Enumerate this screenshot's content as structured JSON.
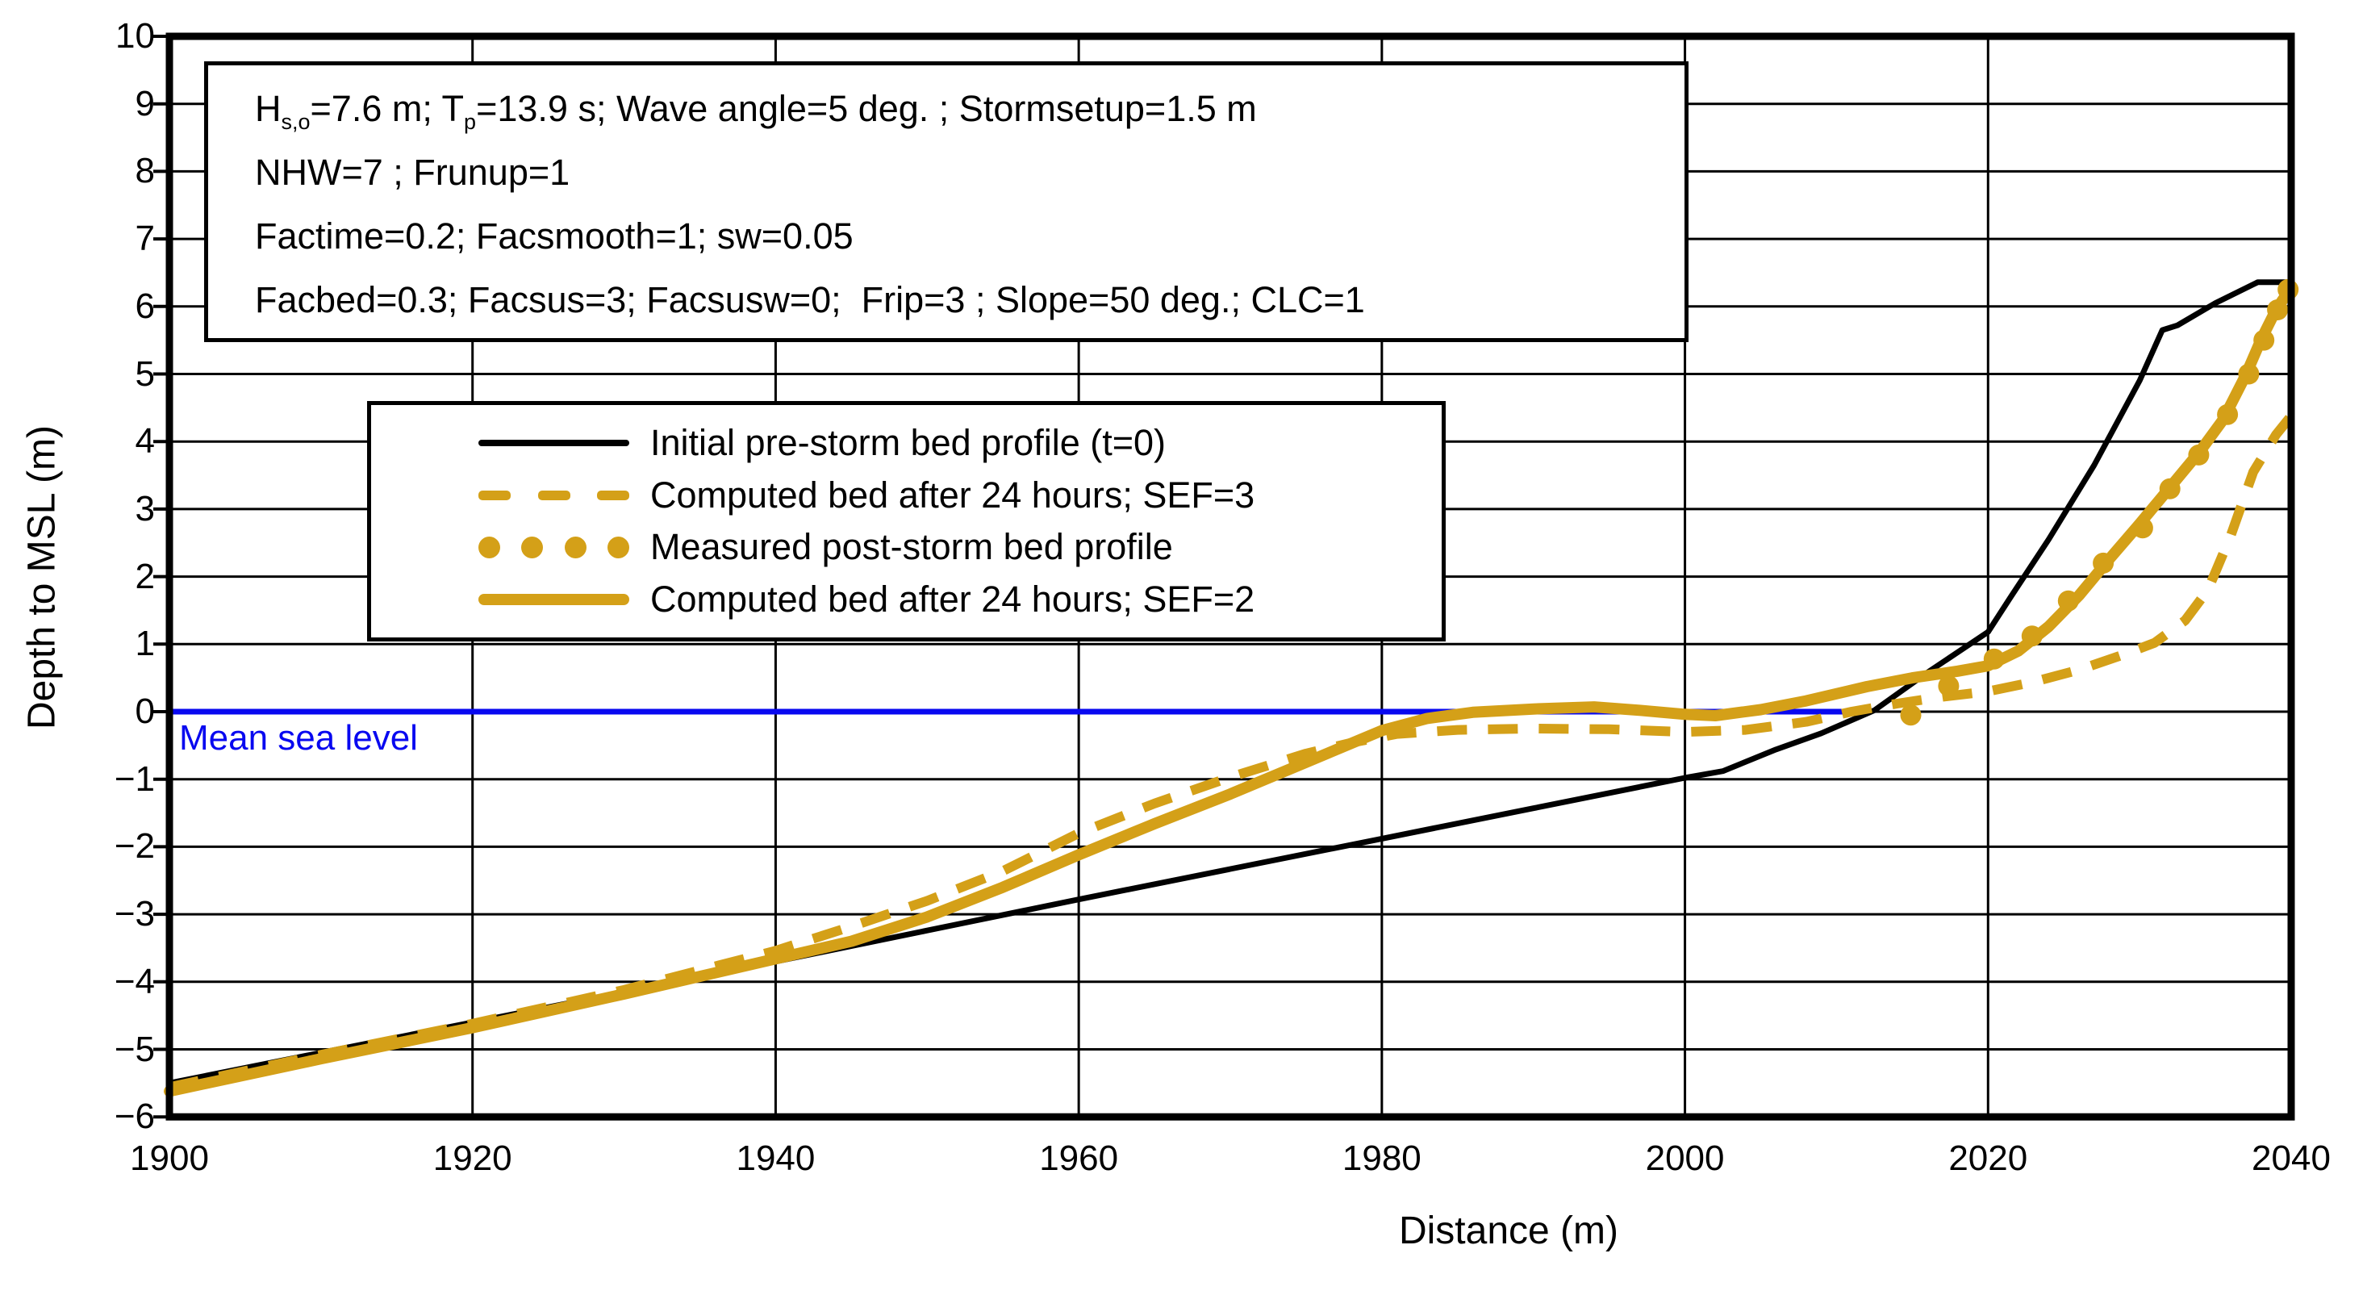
{
  "colors": {
    "background": "#FFFFFF",
    "black": "#000000",
    "gold": "#D4A018",
    "blue": "#0808F0",
    "grid": "#000000"
  },
  "annotation": {
    "lines": [
      {
        "parts": [
          {
            "t": "H"
          },
          {
            "t": "s,o",
            "sub": true
          },
          {
            "t": "=7.6 m; T"
          },
          {
            "t": "p",
            "sub": true
          },
          {
            "t": "=13.9 s; Wave angle=5 deg. ; Stormsetup=1.5 m"
          }
        ]
      },
      {
        "parts": [
          {
            "t": "NHW=7 ; Frunup=1"
          }
        ]
      },
      {
        "parts": [
          {
            "t": "Factime=0.2; Facsmooth=1; sw=0.05"
          }
        ]
      },
      {
        "parts": [
          {
            "t": "Facbed=0.3; Facsus=3; Facsusw=0;  Frip=3 ; Slope=50 deg.; CLC=1"
          }
        ]
      }
    ]
  },
  "legend": {
    "items": [
      {
        "style": "solid-black",
        "label": "Initial pre-storm bed profile (t=0)"
      },
      {
        "style": "dashed-gold",
        "label": "Computed bed after 24 hours; SEF=3"
      },
      {
        "style": "dots-gold",
        "label": "Measured post-storm bed profile"
      },
      {
        "style": "solid-gold",
        "label": "Computed bed after 24 hours; SEF=2"
      }
    ]
  },
  "chart_data": {
    "type": "line",
    "title": "",
    "xlabel": "Distance (m)",
    "ylabel": "Depth to MSL (m)",
    "xlim": [
      1900,
      2040
    ],
    "ylim": [
      -6,
      10
    ],
    "grid": true,
    "legend_position": "upper-left-inside",
    "xticks": [
      1900,
      1920,
      1940,
      1960,
      1980,
      2000,
      2020,
      2040
    ],
    "xtick_labels": [
      "1900",
      "1920",
      "1940",
      "1960",
      "1980",
      "2000",
      "2020",
      "2040"
    ],
    "yticks": [
      10,
      9,
      8,
      7,
      6,
      5,
      4,
      3,
      2,
      1,
      0,
      -1,
      -2,
      -3,
      -4,
      -5,
      -6
    ],
    "ytick_labels": [
      "10",
      "9",
      "8",
      "7",
      "6",
      "5",
      "4",
      "3",
      "2",
      "1",
      "0",
      "−1",
      "−2",
      "−3",
      "−4",
      "−5",
      "−6"
    ],
    "sea_level": {
      "value": 0,
      "label": "Mean sea level",
      "x_start": 1900,
      "x_end": 2011.5
    },
    "series": [
      {
        "name": "Initial pre-storm bed profile (t=0)",
        "style": "solid",
        "color_key": "black",
        "width": 7,
        "points": [
          [
            1900,
            -5.5
          ],
          [
            1910,
            -5.05
          ],
          [
            1920,
            -4.6
          ],
          [
            1930,
            -4.15
          ],
          [
            1940,
            -3.7
          ],
          [
            1950,
            -3.24
          ],
          [
            1960,
            -2.78
          ],
          [
            1970,
            -2.33
          ],
          [
            1980,
            -1.88
          ],
          [
            1990,
            -1.43
          ],
          [
            2000,
            -0.98
          ],
          [
            2002.5,
            -0.88
          ],
          [
            2006,
            -0.56
          ],
          [
            2009,
            -0.32
          ],
          [
            2012.5,
            0.02
          ],
          [
            2016,
            0.58
          ],
          [
            2020,
            1.18
          ],
          [
            2021.5,
            1.7
          ],
          [
            2024,
            2.55
          ],
          [
            2027,
            3.65
          ],
          [
            2030,
            4.9
          ],
          [
            2031.5,
            5.65
          ],
          [
            2032.5,
            5.72
          ],
          [
            2035,
            6.05
          ],
          [
            2037.8,
            6.36
          ],
          [
            2040,
            6.36
          ]
        ]
      },
      {
        "name": "Computed bed after 24 hours; SEF=3",
        "style": "dashed",
        "color_key": "gold",
        "width": 12,
        "points": [
          [
            1900,
            -5.56
          ],
          [
            1910,
            -5.08
          ],
          [
            1920,
            -4.62
          ],
          [
            1930,
            -4.12
          ],
          [
            1940,
            -3.54
          ],
          [
            1945,
            -3.18
          ],
          [
            1950,
            -2.8
          ],
          [
            1955,
            -2.36
          ],
          [
            1960,
            -1.8
          ],
          [
            1965,
            -1.36
          ],
          [
            1970,
            -0.97
          ],
          [
            1975,
            -0.62
          ],
          [
            1978,
            -0.46
          ],
          [
            1981,
            -0.33
          ],
          [
            1985,
            -0.27
          ],
          [
            1990,
            -0.25
          ],
          [
            1995,
            -0.26
          ],
          [
            2000,
            -0.3
          ],
          [
            2004,
            -0.27
          ],
          [
            2008,
            -0.15
          ],
          [
            2011,
            0.0
          ],
          [
            2014,
            0.12
          ],
          [
            2017,
            0.22
          ],
          [
            2020,
            0.3
          ],
          [
            2023,
            0.44
          ],
          [
            2026,
            0.62
          ],
          [
            2029,
            0.85
          ],
          [
            2031,
            1.02
          ],
          [
            2033,
            1.35
          ],
          [
            2034.5,
            1.8
          ],
          [
            2036,
            2.6
          ],
          [
            2037.5,
            3.55
          ],
          [
            2039,
            4.1
          ],
          [
            2040,
            4.38
          ]
        ]
      },
      {
        "name": "Measured post-storm bed profile",
        "style": "dots",
        "color_key": "gold",
        "dot_radius": 13,
        "points": [
          [
            2014.9,
            -0.05
          ],
          [
            2017.4,
            0.38
          ],
          [
            2020.4,
            0.78
          ],
          [
            2022.9,
            1.12
          ],
          [
            2025.3,
            1.64
          ],
          [
            2027.6,
            2.2
          ],
          [
            2030.2,
            2.72
          ],
          [
            2032.0,
            3.3
          ],
          [
            2033.9,
            3.8
          ],
          [
            2035.8,
            4.4
          ],
          [
            2037.2,
            5.0
          ],
          [
            2038.2,
            5.5
          ],
          [
            2039.1,
            5.95
          ],
          [
            2039.8,
            6.25
          ]
        ]
      },
      {
        "name": "Computed bed after 24 hours; SEF=2",
        "style": "solid",
        "color_key": "gold",
        "width": 14,
        "points": [
          [
            1900,
            -5.62
          ],
          [
            1910,
            -5.14
          ],
          [
            1920,
            -4.68
          ],
          [
            1930,
            -4.18
          ],
          [
            1940,
            -3.66
          ],
          [
            1945,
            -3.4
          ],
          [
            1950,
            -3.04
          ],
          [
            1955,
            -2.6
          ],
          [
            1960,
            -2.12
          ],
          [
            1965,
            -1.66
          ],
          [
            1970,
            -1.22
          ],
          [
            1975,
            -0.75
          ],
          [
            1980,
            -0.28
          ],
          [
            1983,
            -0.1
          ],
          [
            1986,
            -0.01
          ],
          [
            1990,
            0.04
          ],
          [
            1994,
            0.07
          ],
          [
            1997,
            0.02
          ],
          [
            2000,
            -0.04
          ],
          [
            2002,
            -0.06
          ],
          [
            2005,
            0.03
          ],
          [
            2008,
            0.16
          ],
          [
            2012,
            0.37
          ],
          [
            2015,
            0.5
          ],
          [
            2018,
            0.6
          ],
          [
            2020,
            0.68
          ],
          [
            2022,
            0.9
          ],
          [
            2024,
            1.26
          ],
          [
            2026,
            1.72
          ],
          [
            2028,
            2.26
          ],
          [
            2030,
            2.78
          ],
          [
            2032,
            3.32
          ],
          [
            2034,
            3.86
          ],
          [
            2035.5,
            4.32
          ],
          [
            2037,
            4.98
          ],
          [
            2038,
            5.5
          ],
          [
            2039,
            5.95
          ],
          [
            2040,
            6.28
          ]
        ]
      }
    ]
  }
}
